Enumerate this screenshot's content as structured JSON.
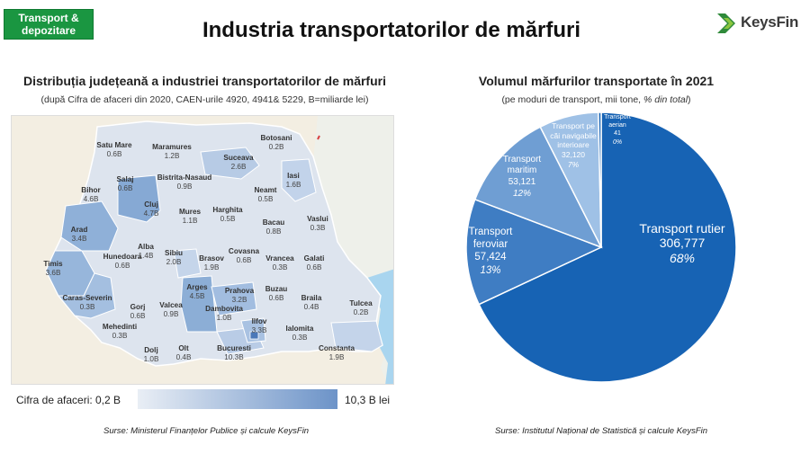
{
  "header": {
    "category_tag": "Transport & depozitare",
    "title": "Industria transportatorilor de mărfuri",
    "brand": "KeysFin"
  },
  "map_section": {
    "title": "Distribuția județeană a industriei transportatorilor de mărfuri",
    "subtitle": "(după Cifra de afaceri din 2020, CAEN-urile 4920, 4941& 5229, B=miliarde lei)",
    "legend_min_label": "Cifra de afaceri: 0,2 B",
    "legend_max_label": "10,3 B lei",
    "legend_min_color": "#e9eef5",
    "legend_max_color": "#6c93c8",
    "source": "Surse: Ministerul Finanțelor Publice și calcule KeysFin",
    "counties": [
      {
        "name": "Satu Mare",
        "value": "0.6B"
      },
      {
        "name": "Maramures",
        "value": "1.2B"
      },
      {
        "name": "Botosani",
        "value": "0.2B"
      },
      {
        "name": "Suceava",
        "value": "2.6B"
      },
      {
        "name": "Salaj",
        "value": "0.6B"
      },
      {
        "name": "Bistrita-Nasaud",
        "value": "0.9B"
      },
      {
        "name": "Iasi",
        "value": "1.6B"
      },
      {
        "name": "Bihor",
        "value": "4.6B"
      },
      {
        "name": "Cluj",
        "value": "4.7B"
      },
      {
        "name": "Neamt",
        "value": "0.5B"
      },
      {
        "name": "Harghita",
        "value": "0.5B"
      },
      {
        "name": "Mures",
        "value": "1.1B"
      },
      {
        "name": "Bacau",
        "value": "0.8B"
      },
      {
        "name": "Vaslui",
        "value": "0.3B"
      },
      {
        "name": "Arad",
        "value": "3.4B"
      },
      {
        "name": "Alba",
        "value": "1.4B"
      },
      {
        "name": "Sibiu",
        "value": "2.0B"
      },
      {
        "name": "Covasna",
        "value": "0.6B"
      },
      {
        "name": "Galati",
        "value": "0.6B"
      },
      {
        "name": "Hunedoara",
        "value": "0.6B"
      },
      {
        "name": "Brasov",
        "value": "1.9B"
      },
      {
        "name": "Vrancea",
        "value": "0.3B"
      },
      {
        "name": "Timis",
        "value": "3.6B"
      },
      {
        "name": "Arges",
        "value": "4.5B"
      },
      {
        "name": "Prahova",
        "value": "3.2B"
      },
      {
        "name": "Buzau",
        "value": "0.6B"
      },
      {
        "name": "Braila",
        "value": "0.4B"
      },
      {
        "name": "Caras-Severin",
        "value": "0.3B"
      },
      {
        "name": "Gorj",
        "value": "0.6B"
      },
      {
        "name": "Valcea",
        "value": "0.9B"
      },
      {
        "name": "Dambovita",
        "value": "1.0B"
      },
      {
        "name": "Tulcea",
        "value": "0.2B"
      },
      {
        "name": "Mehedinti",
        "value": "0.3B"
      },
      {
        "name": "Ilfov",
        "value": "3.3B"
      },
      {
        "name": "Ialomita",
        "value": "0.3B"
      },
      {
        "name": "Dolj",
        "value": "1.0B"
      },
      {
        "name": "Olt",
        "value": "0.4B"
      },
      {
        "name": "Bucuresti",
        "value": "10.3B"
      },
      {
        "name": "Constanta",
        "value": "1.9B"
      }
    ]
  },
  "pie_section": {
    "title": "Volumul mărfurilor transportate în 2021",
    "subtitle_main": "(pe moduri de transport, mii tone, ",
    "subtitle_italic": "% din total",
    "subtitle_end": ")",
    "source": "Surse: Institutul Național de Statistică și calcule KeysFin"
  },
  "chart_data": {
    "type": "pie",
    "title": "Volumul mărfurilor transportate în 2021",
    "unit": "mii tone",
    "slices": [
      {
        "label": "Transport rutier",
        "value": 306777,
        "value_label": "306,777",
        "percent_label": "68%",
        "color": "#1763b4"
      },
      {
        "label": "Transport feroviar",
        "value": 57424,
        "value_label": "57,424",
        "percent_label": "13%",
        "color": "#3f7dc3"
      },
      {
        "label": "Transport maritim",
        "value": 53121,
        "value_label": "53,121",
        "percent_label": "12%",
        "color": "#6f9ed3"
      },
      {
        "label": "Transport pe căi navigabile interioare",
        "value": 32120,
        "value_label": "32,120",
        "percent_label": "7%",
        "color": "#9fc1e6"
      },
      {
        "label": "Transport aerian",
        "value": 41,
        "value_label": "41",
        "percent_label": "0%",
        "color": "#1763b4"
      }
    ]
  }
}
